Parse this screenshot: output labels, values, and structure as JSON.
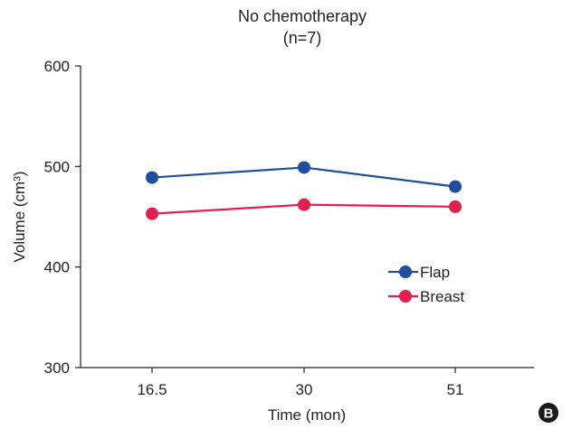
{
  "chart_data": {
    "type": "line",
    "title": "No chemotherapy",
    "subtitle": "(n=7)",
    "xlabel": "Time (mon)",
    "ylabel": "Volume (cm³)",
    "categories": [
      "16.5",
      "30",
      "51"
    ],
    "ylim": [
      300,
      600
    ],
    "yticks": [
      300,
      400,
      500,
      600
    ],
    "grid": false,
    "legend_position": "center-right",
    "series": [
      {
        "name": "Flap",
        "color": "#1f4e9c",
        "values": [
          489,
          499,
          480
        ]
      },
      {
        "name": "Breast",
        "color": "#e0204f",
        "values": [
          453,
          462,
          460
        ]
      }
    ]
  },
  "panel_label": "B"
}
